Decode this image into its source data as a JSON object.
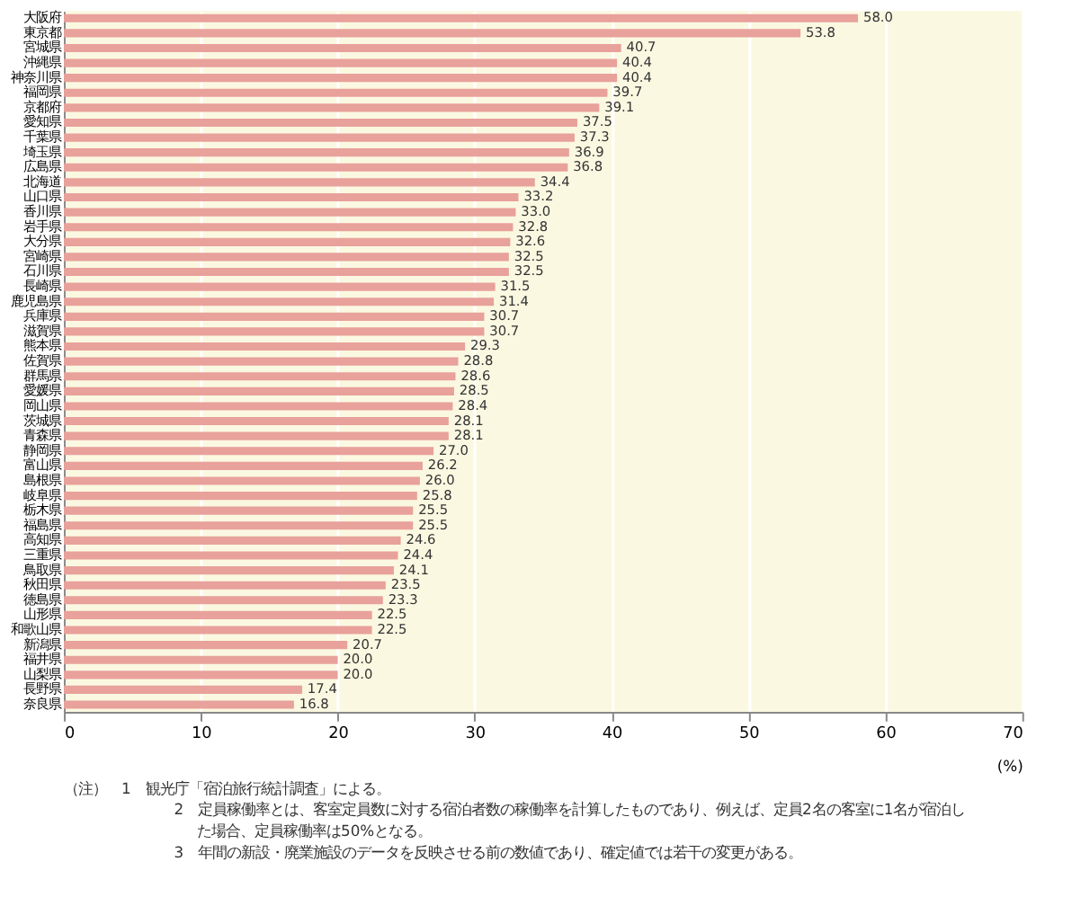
{
  "chart_data": {
    "type": "bar",
    "orientation": "horizontal",
    "xlabel": "(%)",
    "categories": [
      "大阪府",
      "東京都",
      "宮城県",
      "沖縄県",
      "神奈川県",
      "福岡県",
      "京都府",
      "愛知県",
      "千葉県",
      "埼玉県",
      "広島県",
      "北海道",
      "山口県",
      "香川県",
      "岩手県",
      "大分県",
      "宮崎県",
      "石川県",
      "長崎県",
      "鹿児島県",
      "兵庫県",
      "滋賀県",
      "熊本県",
      "佐賀県",
      "群馬県",
      "愛媛県",
      "岡山県",
      "茨城県",
      "青森県",
      "静岡県",
      "富山県",
      "島根県",
      "岐阜県",
      "栃木県",
      "福島県",
      "高知県",
      "三重県",
      "鳥取県",
      "秋田県",
      "徳島県",
      "山形県",
      "和歌山県",
      "新潟県",
      "福井県",
      "山梨県",
      "長野県",
      "奈良県"
    ],
    "values": [
      58.0,
      53.8,
      40.7,
      40.4,
      40.4,
      39.7,
      39.1,
      37.5,
      37.3,
      36.9,
      36.8,
      34.4,
      33.2,
      33.0,
      32.8,
      32.6,
      32.5,
      32.5,
      31.5,
      31.4,
      30.7,
      30.7,
      29.3,
      28.8,
      28.6,
      28.5,
      28.4,
      28.1,
      28.1,
      27.0,
      26.2,
      26.0,
      25.8,
      25.5,
      25.5,
      24.6,
      24.4,
      24.1,
      23.5,
      23.3,
      22.5,
      22.5,
      20.7,
      20.0,
      20.0,
      17.4,
      16.8
    ],
    "color": "#e8a19b",
    "xlim": [
      0,
      70
    ],
    "xticks": [
      0,
      10,
      20,
      30,
      40,
      50,
      60,
      70
    ],
    "grid": "x",
    "value_labels": [
      "58.0",
      "53.8",
      "40.7",
      "40.4",
      "40.4",
      "39.7",
      "39.1",
      "37.5",
      "37.3",
      "36.9",
      "36.8",
      "34.4",
      "33.2",
      "33.0",
      "32.8",
      "32.6",
      "32.5",
      "32.5",
      "31.5",
      "31.4",
      "30.7",
      "30.7",
      "29.3",
      "28.8",
      "28.6",
      "28.5",
      "28.4",
      "28.1",
      "28.1",
      "27.0",
      "26.2",
      "26.0",
      "25.8",
      "25.5",
      "25.5",
      "24.6",
      "24.4",
      "24.1",
      "23.5",
      "23.3",
      "22.5",
      "22.5",
      "20.7",
      "20.0",
      "20.0",
      "17.4",
      "16.8"
    ],
    "annotations": [
      "（注）　1　観光庁「宿泊旅行統計調査」による。",
      "2　定員稼働率とは、客室定員数に対する宿泊者数の稼働率を計算したものであり、例えば、定員2名の客室に1名が宿泊した場合、定員稼働率は50%となる。",
      "3　年間の新設・廃業施設のデータを反映させる前の数値であり、確定値では若干の変更がある。"
    ]
  }
}
